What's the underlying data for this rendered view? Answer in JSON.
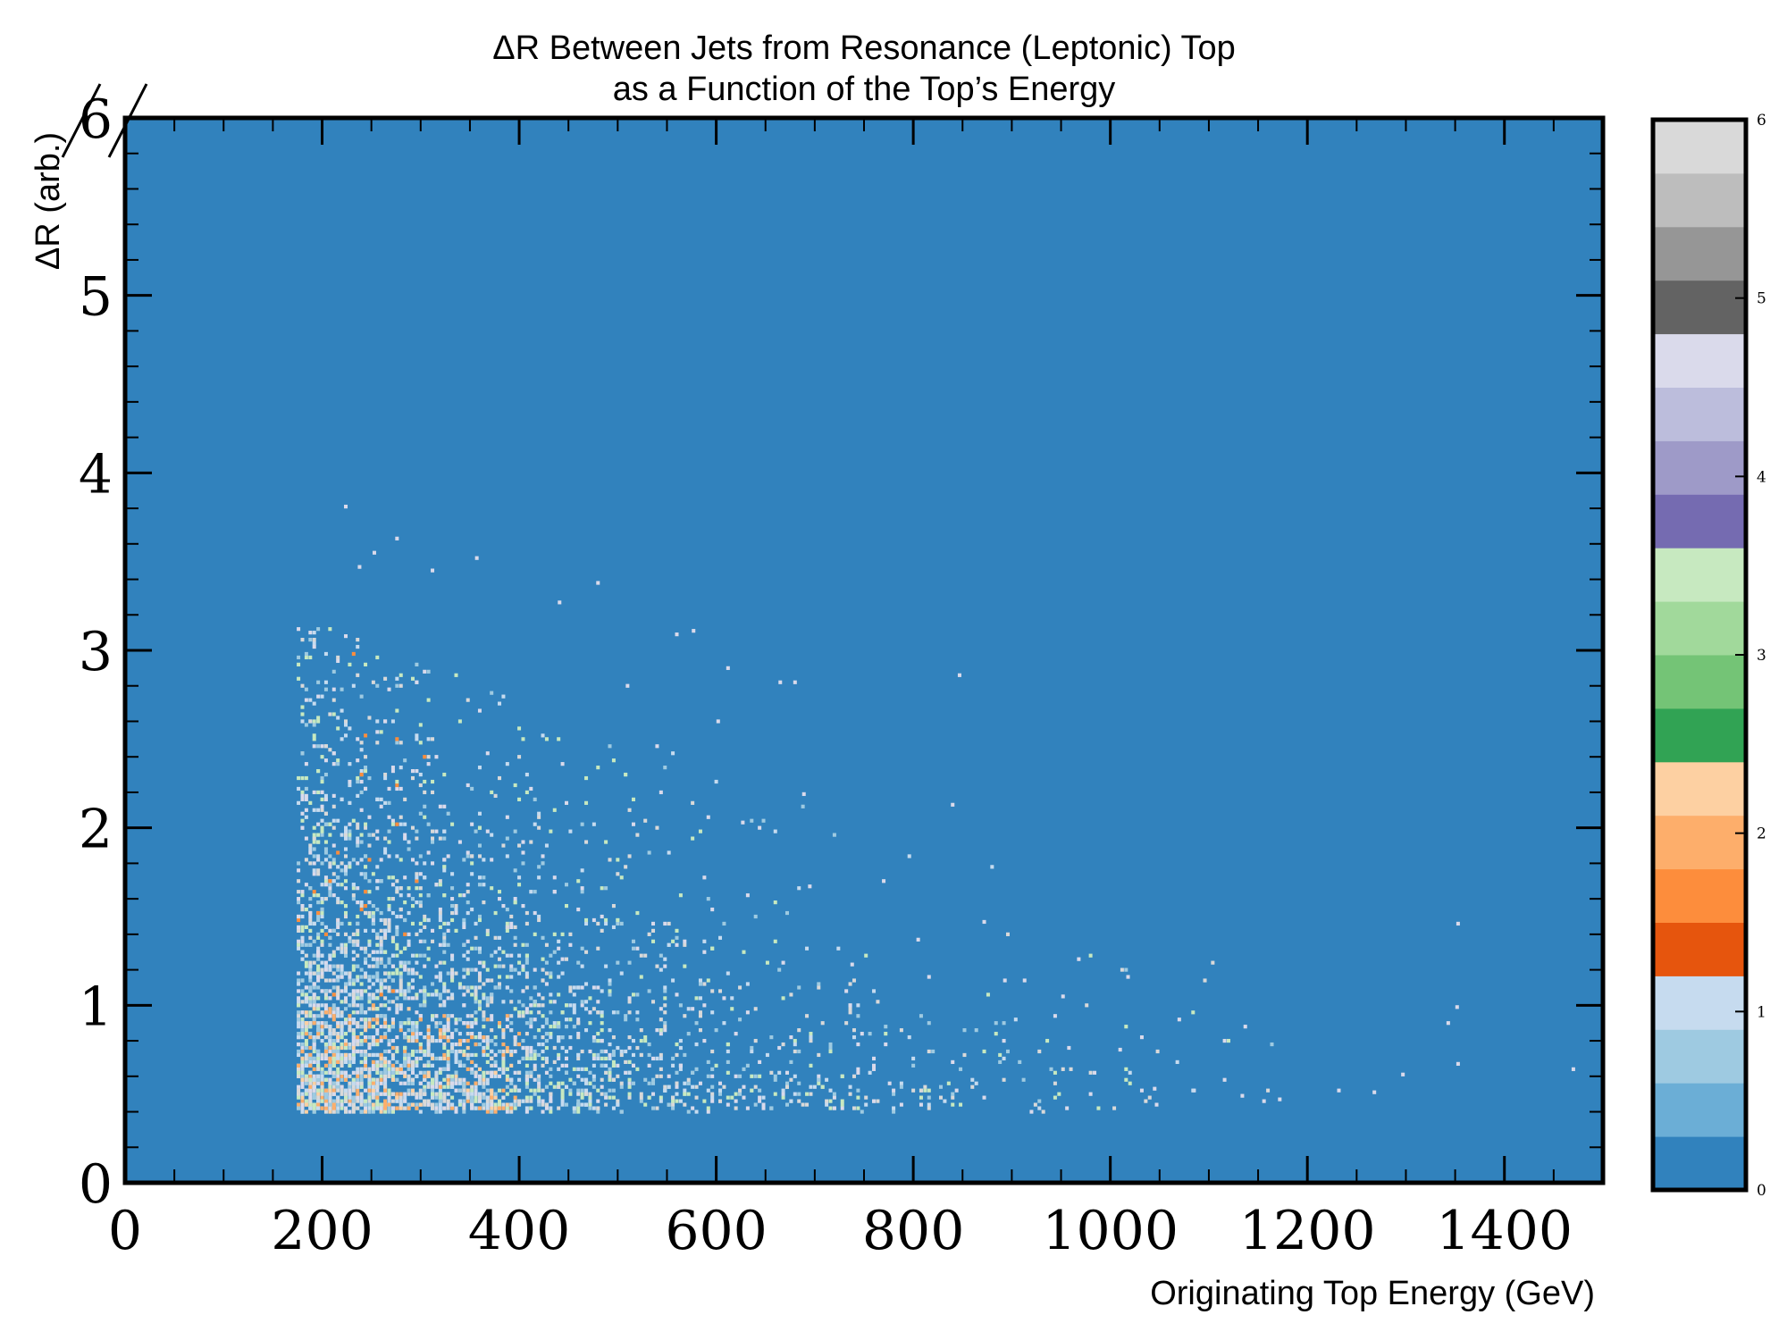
{
  "chart_data": {
    "type": "heatmap",
    "title_lines": [
      "ΔR Between Jets from Resonance (Leptonic) Top",
      "as a Function of the Top’s Energy"
    ],
    "xlabel": "Originating Top Energy (GeV)",
    "ylabel": "ΔR (arb.)",
    "xlim": [
      0,
      1500
    ],
    "ylim": [
      0,
      6
    ],
    "x_ticks": [
      "0",
      "200",
      "400",
      "600",
      "800",
      "1000",
      "1200",
      "1400"
    ],
    "y_ticks": [
      "0",
      "1",
      "2",
      "3",
      "4",
      "5",
      "6"
    ],
    "colorbar": {
      "range": [
        0,
        6
      ],
      "ticks": [
        "0",
        "1",
        "2",
        "3",
        "4",
        "5",
        "6"
      ],
      "colors": [
        "#3182bd",
        "#6baed6",
        "#9ecae1",
        "#c6dbef",
        "#e6550d",
        "#fd8d3c",
        "#fdae6b",
        "#fdd0a2",
        "#31a354",
        "#74c476",
        "#a1d99b",
        "#c7e9c0",
        "#756bb1",
        "#9e9ac8",
        "#bcbddc",
        "#dadaeb",
        "#636363",
        "#969696",
        "#bdbdbd",
        "#d9d9d9"
      ]
    },
    "background_value": 0,
    "populated_region": {
      "energy_range": [
        175,
        1470
      ],
      "deltaR_range": [
        0.4,
        3.8
      ],
      "dense_core": {
        "energy_range": [
          175,
          400
        ],
        "deltaR_range": [
          0.4,
          1.0
        ]
      }
    },
    "points": [
      [
        224,
        3.81
      ],
      [
        276,
        3.63
      ],
      [
        253,
        3.55
      ],
      [
        238,
        3.47
      ],
      [
        312,
        3.45
      ],
      [
        357,
        3.52
      ],
      [
        480,
        3.38
      ],
      [
        441,
        3.27
      ],
      [
        560,
        3.09
      ],
      [
        577,
        3.11
      ],
      [
        612,
        2.9
      ],
      [
        847,
        2.86
      ],
      [
        665,
        2.82
      ],
      [
        680,
        2.82
      ],
      [
        510,
        2.8
      ],
      [
        602,
        2.6
      ],
      [
        540,
        2.46
      ],
      [
        689,
        2.19
      ],
      [
        840,
        2.13
      ],
      [
        627,
        2.03
      ],
      [
        770,
        1.7
      ],
      [
        695,
        1.67
      ],
      [
        872,
        1.47
      ],
      [
        805,
        1.37
      ],
      [
        738,
        1.23
      ],
      [
        893,
        1.14
      ],
      [
        913,
        1.14
      ],
      [
        1018,
        1.16
      ],
      [
        952,
        1.05
      ],
      [
        1070,
        0.92
      ],
      [
        1137,
        0.88
      ],
      [
        1352,
        0.99
      ],
      [
        1353,
        1.46
      ],
      [
        1343,
        0.9
      ],
      [
        1116,
        0.8
      ],
      [
        958,
        0.76
      ],
      [
        1010,
        0.75
      ],
      [
        1045,
        0.53
      ],
      [
        1085,
        0.52
      ],
      [
        1134,
        0.49
      ],
      [
        1172,
        0.47
      ],
      [
        1232,
        0.52
      ],
      [
        1268,
        0.51
      ],
      [
        1297,
        0.61
      ],
      [
        1353,
        0.67
      ],
      [
        1470,
        0.64
      ],
      [
        1047,
        0.44
      ]
    ]
  }
}
